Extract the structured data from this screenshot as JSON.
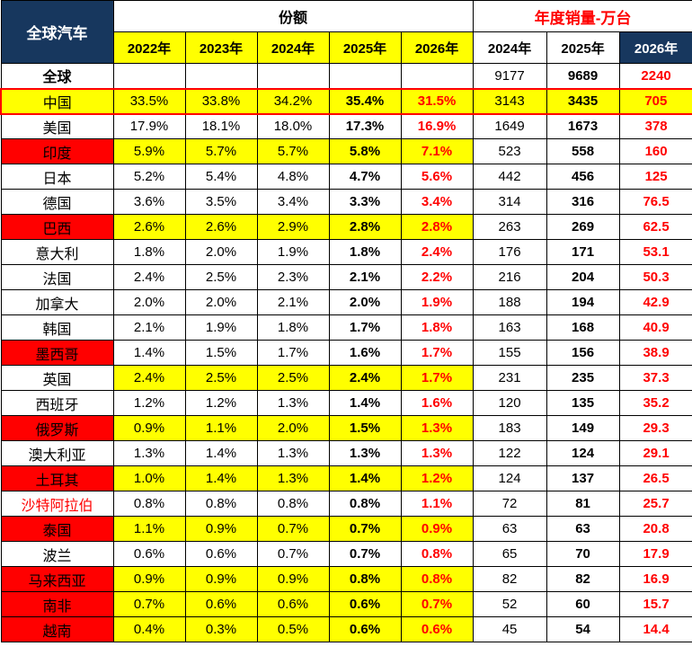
{
  "colors": {
    "navy": "#17375E",
    "yellow": "#FFFF00",
    "red": "#FF0000",
    "grid": "#000000"
  },
  "header": {
    "corner_label": "全球汽车",
    "share_group_label": "份额",
    "sales_group_label": "年度销量-万台",
    "share_year_headers": [
      "2022年",
      "2023年",
      "2024年",
      "2025年",
      "2026年"
    ],
    "sales_year_headers": [
      "2024年",
      "2025年",
      "2026年"
    ]
  },
  "table": {
    "rows": [
      {
        "name": "全球",
        "name_bold": true,
        "name_color": "black",
        "name_bg": "white",
        "share_bg": "white",
        "sales_bg": "white",
        "red_outline": false,
        "share": [
          "",
          "",
          "",
          "",
          ""
        ],
        "sales": [
          "9177",
          "9689",
          "2240"
        ]
      },
      {
        "name": "中国",
        "name_bold": false,
        "name_color": "black",
        "name_bg": "yellow",
        "share_bg": "yellow",
        "sales_bg": "yellow",
        "red_outline": true,
        "share": [
          "33.5%",
          "33.8%",
          "34.2%",
          "35.4%",
          "31.5%"
        ],
        "sales": [
          "3143",
          "3435",
          "705"
        ]
      },
      {
        "name": "美国",
        "name_bold": false,
        "name_color": "black",
        "name_bg": "white",
        "share_bg": "white",
        "sales_bg": "white",
        "red_outline": false,
        "share": [
          "17.9%",
          "18.1%",
          "18.0%",
          "17.3%",
          "16.9%"
        ],
        "sales": [
          "1649",
          "1673",
          "378"
        ]
      },
      {
        "name": "印度",
        "name_bold": false,
        "name_color": "black",
        "name_bg": "red",
        "share_bg": "yellow",
        "sales_bg": "white",
        "red_outline": false,
        "share": [
          "5.9%",
          "5.7%",
          "5.7%",
          "5.8%",
          "7.1%"
        ],
        "sales": [
          "523",
          "558",
          "160"
        ]
      },
      {
        "name": "日本",
        "name_bold": false,
        "name_color": "black",
        "name_bg": "white",
        "share_bg": "white",
        "sales_bg": "white",
        "red_outline": false,
        "share": [
          "5.2%",
          "5.4%",
          "4.8%",
          "4.7%",
          "5.6%"
        ],
        "sales": [
          "442",
          "456",
          "125"
        ]
      },
      {
        "name": "德国",
        "name_bold": false,
        "name_color": "black",
        "name_bg": "white",
        "share_bg": "white",
        "sales_bg": "white",
        "red_outline": false,
        "share": [
          "3.6%",
          "3.5%",
          "3.4%",
          "3.3%",
          "3.4%"
        ],
        "sales": [
          "314",
          "316",
          "76.5"
        ]
      },
      {
        "name": "巴西",
        "name_bold": false,
        "name_color": "black",
        "name_bg": "red",
        "share_bg": "yellow",
        "sales_bg": "white",
        "red_outline": false,
        "share": [
          "2.6%",
          "2.6%",
          "2.9%",
          "2.8%",
          "2.8%"
        ],
        "sales": [
          "263",
          "269",
          "62.5"
        ]
      },
      {
        "name": "意大利",
        "name_bold": false,
        "name_color": "black",
        "name_bg": "white",
        "share_bg": "white",
        "sales_bg": "white",
        "red_outline": false,
        "share": [
          "1.8%",
          "2.0%",
          "1.9%",
          "1.8%",
          "2.4%"
        ],
        "sales": [
          "176",
          "171",
          "53.1"
        ]
      },
      {
        "name": "法国",
        "name_bold": false,
        "name_color": "black",
        "name_bg": "white",
        "share_bg": "white",
        "sales_bg": "white",
        "red_outline": false,
        "share": [
          "2.4%",
          "2.5%",
          "2.3%",
          "2.1%",
          "2.2%"
        ],
        "sales": [
          "216",
          "204",
          "50.3"
        ]
      },
      {
        "name": "加拿大",
        "name_bold": false,
        "name_color": "black",
        "name_bg": "white",
        "share_bg": "white",
        "sales_bg": "white",
        "red_outline": false,
        "share": [
          "2.0%",
          "2.0%",
          "2.1%",
          "2.0%",
          "1.9%"
        ],
        "sales": [
          "188",
          "194",
          "42.9"
        ]
      },
      {
        "name": "韩国",
        "name_bold": false,
        "name_color": "black",
        "name_bg": "white",
        "share_bg": "white",
        "sales_bg": "white",
        "red_outline": false,
        "share": [
          "2.1%",
          "1.9%",
          "1.8%",
          "1.7%",
          "1.8%"
        ],
        "sales": [
          "163",
          "168",
          "40.9"
        ]
      },
      {
        "name": "墨西哥",
        "name_bold": false,
        "name_color": "black",
        "name_bg": "red",
        "share_bg": "white",
        "sales_bg": "white",
        "red_outline": false,
        "share": [
          "1.4%",
          "1.5%",
          "1.7%",
          "1.6%",
          "1.7%"
        ],
        "sales": [
          "155",
          "156",
          "38.9"
        ]
      },
      {
        "name": "英国",
        "name_bold": false,
        "name_color": "black",
        "name_bg": "white",
        "share_bg": "yellow",
        "sales_bg": "white",
        "red_outline": false,
        "share": [
          "2.4%",
          "2.5%",
          "2.5%",
          "2.4%",
          "1.7%"
        ],
        "sales": [
          "231",
          "235",
          "37.3"
        ]
      },
      {
        "name": "西班牙",
        "name_bold": false,
        "name_color": "black",
        "name_bg": "white",
        "share_bg": "white",
        "sales_bg": "white",
        "red_outline": false,
        "share": [
          "1.2%",
          "1.2%",
          "1.3%",
          "1.4%",
          "1.6%"
        ],
        "sales": [
          "120",
          "135",
          "35.2"
        ]
      },
      {
        "name": "俄罗斯",
        "name_bold": false,
        "name_color": "black",
        "name_bg": "red",
        "share_bg": "yellow",
        "sales_bg": "white",
        "red_outline": false,
        "share": [
          "0.9%",
          "1.1%",
          "2.0%",
          "1.5%",
          "1.3%"
        ],
        "sales": [
          "183",
          "149",
          "29.3"
        ]
      },
      {
        "name": "澳大利亚",
        "name_bold": false,
        "name_color": "black",
        "name_bg": "white",
        "share_bg": "white",
        "sales_bg": "white",
        "red_outline": false,
        "share": [
          "1.3%",
          "1.4%",
          "1.3%",
          "1.3%",
          "1.3%"
        ],
        "sales": [
          "122",
          "124",
          "29.1"
        ]
      },
      {
        "name": "土耳其",
        "name_bold": false,
        "name_color": "black",
        "name_bg": "red",
        "share_bg": "yellow",
        "sales_bg": "white",
        "red_outline": false,
        "share": [
          "1.0%",
          "1.4%",
          "1.3%",
          "1.4%",
          "1.2%"
        ],
        "sales": [
          "124",
          "137",
          "26.5"
        ]
      },
      {
        "name": "沙特阿拉伯",
        "name_bold": false,
        "name_color": "red",
        "name_bg": "white",
        "share_bg": "white",
        "sales_bg": "white",
        "red_outline": false,
        "share": [
          "0.8%",
          "0.8%",
          "0.8%",
          "0.8%",
          "1.1%"
        ],
        "sales": [
          "72",
          "81",
          "25.7"
        ]
      },
      {
        "name": "泰国",
        "name_bold": false,
        "name_color": "black",
        "name_bg": "red",
        "share_bg": "yellow",
        "sales_bg": "white",
        "red_outline": false,
        "share": [
          "1.1%",
          "0.9%",
          "0.7%",
          "0.7%",
          "0.9%"
        ],
        "sales": [
          "63",
          "63",
          "20.8"
        ]
      },
      {
        "name": "波兰",
        "name_bold": false,
        "name_color": "black",
        "name_bg": "white",
        "share_bg": "white",
        "sales_bg": "white",
        "red_outline": false,
        "share": [
          "0.6%",
          "0.6%",
          "0.7%",
          "0.7%",
          "0.8%"
        ],
        "sales": [
          "65",
          "70",
          "17.9"
        ]
      },
      {
        "name": "马来西亚",
        "name_bold": false,
        "name_color": "black",
        "name_bg": "red",
        "share_bg": "yellow",
        "sales_bg": "white",
        "red_outline": false,
        "share": [
          "0.9%",
          "0.9%",
          "0.9%",
          "0.8%",
          "0.8%"
        ],
        "sales": [
          "82",
          "82",
          "16.9"
        ]
      },
      {
        "name": "南非",
        "name_bold": false,
        "name_color": "black",
        "name_bg": "red",
        "share_bg": "yellow",
        "sales_bg": "white",
        "red_outline": false,
        "share": [
          "0.7%",
          "0.6%",
          "0.6%",
          "0.6%",
          "0.7%"
        ],
        "sales": [
          "52",
          "60",
          "15.7"
        ]
      },
      {
        "name": "越南",
        "name_bold": false,
        "name_color": "black",
        "name_bg": "red",
        "share_bg": "yellow",
        "sales_bg": "white",
        "red_outline": false,
        "share": [
          "0.4%",
          "0.3%",
          "0.5%",
          "0.6%",
          "0.6%"
        ],
        "sales": [
          "45",
          "54",
          "14.4"
        ]
      }
    ]
  },
  "chart_data": {
    "type": "table",
    "title": "全球汽车 份额与年度销量",
    "column_groups": [
      "份额",
      "年度销量-万台"
    ],
    "share_years": [
      2022,
      2023,
      2024,
      2025,
      2026
    ],
    "sales_years": [
      2024,
      2025,
      2026
    ],
    "sales_unit": "万台",
    "rows": [
      {
        "region": "全球",
        "share_pct": [
          null,
          null,
          null,
          null,
          null
        ],
        "sales": [
          9177,
          9689,
          2240
        ]
      },
      {
        "region": "中国",
        "share_pct": [
          33.5,
          33.8,
          34.2,
          35.4,
          31.5
        ],
        "sales": [
          3143,
          3435,
          705
        ]
      },
      {
        "region": "美国",
        "share_pct": [
          17.9,
          18.1,
          18.0,
          17.3,
          16.9
        ],
        "sales": [
          1649,
          1673,
          378
        ]
      },
      {
        "region": "印度",
        "share_pct": [
          5.9,
          5.7,
          5.7,
          5.8,
          7.1
        ],
        "sales": [
          523,
          558,
          160
        ]
      },
      {
        "region": "日本",
        "share_pct": [
          5.2,
          5.4,
          4.8,
          4.7,
          5.6
        ],
        "sales": [
          442,
          456,
          125
        ]
      },
      {
        "region": "德国",
        "share_pct": [
          3.6,
          3.5,
          3.4,
          3.3,
          3.4
        ],
        "sales": [
          314,
          316,
          76.5
        ]
      },
      {
        "region": "巴西",
        "share_pct": [
          2.6,
          2.6,
          2.9,
          2.8,
          2.8
        ],
        "sales": [
          263,
          269,
          62.5
        ]
      },
      {
        "region": "意大利",
        "share_pct": [
          1.8,
          2.0,
          1.9,
          1.8,
          2.4
        ],
        "sales": [
          176,
          171,
          53.1
        ]
      },
      {
        "region": "法国",
        "share_pct": [
          2.4,
          2.5,
          2.3,
          2.1,
          2.2
        ],
        "sales": [
          216,
          204,
          50.3
        ]
      },
      {
        "region": "加拿大",
        "share_pct": [
          2.0,
          2.0,
          2.1,
          2.0,
          1.9
        ],
        "sales": [
          188,
          194,
          42.9
        ]
      },
      {
        "region": "韩国",
        "share_pct": [
          2.1,
          1.9,
          1.8,
          1.7,
          1.8
        ],
        "sales": [
          163,
          168,
          40.9
        ]
      },
      {
        "region": "墨西哥",
        "share_pct": [
          1.4,
          1.5,
          1.7,
          1.6,
          1.7
        ],
        "sales": [
          155,
          156,
          38.9
        ]
      },
      {
        "region": "英国",
        "share_pct": [
          2.4,
          2.5,
          2.5,
          2.4,
          1.7
        ],
        "sales": [
          231,
          235,
          37.3
        ]
      },
      {
        "region": "西班牙",
        "share_pct": [
          1.2,
          1.2,
          1.3,
          1.4,
          1.6
        ],
        "sales": [
          120,
          135,
          35.2
        ]
      },
      {
        "region": "俄罗斯",
        "share_pct": [
          0.9,
          1.1,
          2.0,
          1.5,
          1.3
        ],
        "sales": [
          183,
          149,
          29.3
        ]
      },
      {
        "region": "澳大利亚",
        "share_pct": [
          1.3,
          1.4,
          1.3,
          1.3,
          1.3
        ],
        "sales": [
          122,
          124,
          29.1
        ]
      },
      {
        "region": "土耳其",
        "share_pct": [
          1.0,
          1.4,
          1.3,
          1.4,
          1.2
        ],
        "sales": [
          124,
          137,
          26.5
        ]
      },
      {
        "region": "沙特阿拉伯",
        "share_pct": [
          0.8,
          0.8,
          0.8,
          0.8,
          1.1
        ],
        "sales": [
          72,
          81,
          25.7
        ]
      },
      {
        "region": "泰国",
        "share_pct": [
          1.1,
          0.9,
          0.7,
          0.7,
          0.9
        ],
        "sales": [
          63,
          63,
          20.8
        ]
      },
      {
        "region": "波兰",
        "share_pct": [
          0.6,
          0.6,
          0.7,
          0.7,
          0.8
        ],
        "sales": [
          65,
          70,
          17.9
        ]
      },
      {
        "region": "马来西亚",
        "share_pct": [
          0.9,
          0.9,
          0.9,
          0.8,
          0.8
        ],
        "sales": [
          82,
          82,
          16.9
        ]
      },
      {
        "region": "南非",
        "share_pct": [
          0.7,
          0.6,
          0.6,
          0.6,
          0.7
        ],
        "sales": [
          52,
          60,
          15.7
        ]
      },
      {
        "region": "越南",
        "share_pct": [
          0.4,
          0.3,
          0.5,
          0.6,
          0.6
        ],
        "sales": [
          45,
          54,
          14.4
        ]
      }
    ]
  }
}
